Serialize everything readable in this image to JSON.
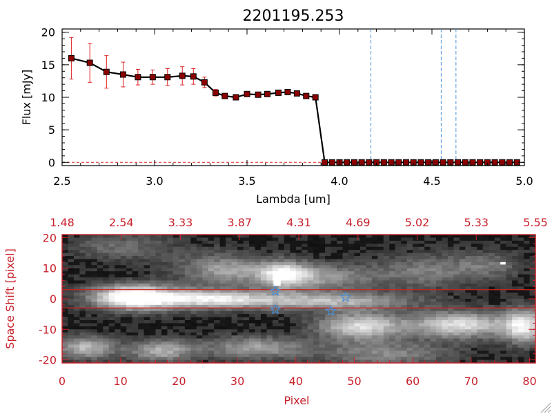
{
  "chart_data": [
    {
      "type": "line",
      "title": "2201195.253",
      "xlabel": "Lambda [um]",
      "ylabel": "Flux [mJy]",
      "xlim": [
        2.5,
        5.0
      ],
      "ylim": [
        -0.5,
        20.5
      ],
      "x_ticks": [
        2.5,
        3.0,
        3.5,
        4.0,
        4.5,
        5.0
      ],
      "x_tick_labels": [
        "2.5",
        "3.0",
        "3.5",
        "4.0",
        "4.5",
        "5.0"
      ],
      "y_ticks": [
        0,
        5,
        10,
        15,
        20
      ],
      "y_tick_labels": [
        "0",
        "5",
        "10",
        "15",
        "20"
      ],
      "grid": false,
      "series": [
        {
          "x": [
            2.55,
            2.65,
            2.74,
            2.83,
            2.91,
            2.99,
            3.07,
            3.15,
            3.21,
            3.27,
            3.33,
            3.38,
            3.44,
            3.5,
            3.56,
            3.61,
            3.67,
            3.72,
            3.77,
            3.82,
            3.87,
            3.92,
            3.96,
            4.0,
            4.04,
            4.08,
            4.12,
            4.16,
            4.2,
            4.24,
            4.28,
            4.32,
            4.36,
            4.4,
            4.44,
            4.48,
            4.52,
            4.56,
            4.6,
            4.64,
            4.68,
            4.72,
            4.76,
            4.8,
            4.84,
            4.88,
            4.92,
            4.96
          ],
          "y": [
            16.0,
            15.3,
            13.9,
            13.5,
            13.1,
            13.1,
            13.1,
            13.3,
            13.2,
            12.3,
            10.7,
            10.2,
            10.0,
            10.5,
            10.4,
            10.5,
            10.7,
            10.8,
            10.6,
            10.2,
            10.0,
            0,
            0,
            0,
            0,
            0,
            0,
            0,
            0,
            0,
            0,
            0,
            0,
            0,
            0,
            0,
            0,
            0,
            0,
            0,
            0,
            0,
            0,
            0,
            0,
            0,
            0,
            0
          ],
          "yerr": [
            3.2,
            3.0,
            2.5,
            1.9,
            1.2,
            1.1,
            1.3,
            1.4,
            1.2,
            0.8,
            0.5,
            0.3,
            0.3,
            0.2,
            0.2,
            0.2,
            0.2,
            0.2,
            0.2,
            0.3,
            0.2,
            0,
            0,
            0,
            0,
            0,
            0,
            0,
            0,
            0,
            0,
            0,
            0,
            0,
            0,
            0,
            0,
            0,
            0,
            0,
            0,
            0,
            0,
            0,
            0,
            0,
            0,
            0
          ],
          "line_color": "#000000",
          "marker_color": "#8b0000",
          "error_color": "#e02020"
        }
      ],
      "vertical_lines": [
        4.17,
        4.55,
        4.63
      ],
      "vertical_line_color": "#4a90d9",
      "zero_line_color": "#e02020"
    },
    {
      "type": "heatmap",
      "xlabel": "Pixel",
      "ylabel": "Space Shift [pixel]",
      "xlim": [
        0,
        81
      ],
      "ylim": [
        -21,
        21
      ],
      "x_ticks": [
        0,
        10,
        20,
        30,
        40,
        50,
        60,
        70,
        80
      ],
      "x_tick_labels": [
        "0",
        "10",
        "20",
        "30",
        "40",
        "50",
        "60",
        "70",
        "80"
      ],
      "y_ticks": [
        -20,
        -10,
        0,
        10,
        20
      ],
      "y_tick_labels": [
        "-20",
        "-10",
        "0",
        "10",
        "20"
      ],
      "top_axis_labels": [
        "1.48",
        "2.54",
        "3.33",
        "3.87",
        "4.31",
        "4.69",
        "5.02",
        "5.33",
        "5.55"
      ],
      "axis_color": "#c8202a",
      "aperture_lines_y": [
        3,
        -3
      ],
      "aperture_line_color": "#d02020",
      "star_markers": [
        {
          "x": 36.5,
          "y": 2.5
        },
        {
          "x": 36.5,
          "y": -3.5
        },
        {
          "x": 46,
          "y": -4
        },
        {
          "x": 48.5,
          "y": 0.5
        }
      ],
      "star_color": "#4a90d9",
      "colormap": "grayscale"
    }
  ]
}
